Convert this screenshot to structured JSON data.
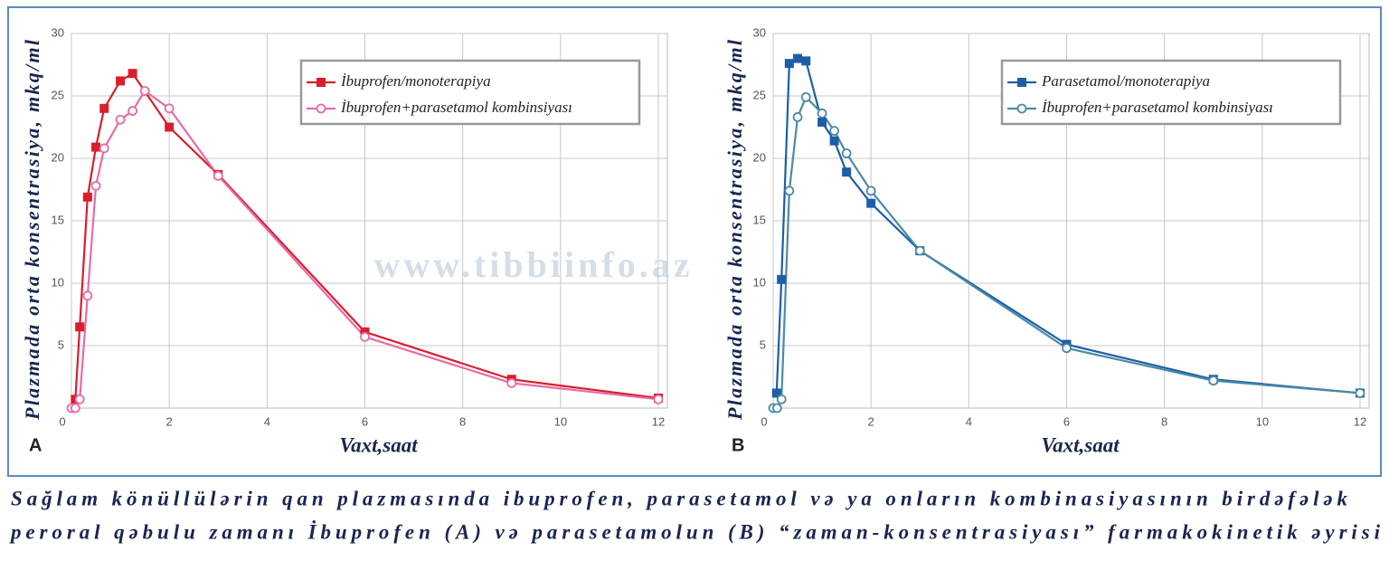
{
  "chart_data": [
    {
      "type": "line",
      "panel_label": "A",
      "xlabel": "Vaxt,saat",
      "ylabel": "Plazmada orta konsentrasiya, mkq/ml",
      "xlim": [
        0,
        12
      ],
      "xticks": [
        0,
        2,
        4,
        6,
        8,
        10,
        12
      ],
      "ylim": [
        0,
        30
      ],
      "yticks": [
        5,
        10,
        15,
        20,
        25,
        30
      ],
      "grid": true,
      "series": [
        {
          "name": "İbuprofen/monoterapiya",
          "color": "#d91f2c",
          "marker": "square",
          "x": [
            0.08,
            0.17,
            0.33,
            0.5,
            0.67,
            1,
            1.25,
            2,
            3,
            6,
            9,
            12
          ],
          "values": [
            0.7,
            6.5,
            16.9,
            20.9,
            24.0,
            26.2,
            26.8,
            22.5,
            18.7,
            6.1,
            2.3,
            0.8
          ]
        },
        {
          "name": "İbuprofen+parasetamol kombinsiyası",
          "color": "#e86ba8",
          "marker": "circle",
          "x": [
            0,
            0.08,
            0.17,
            0.33,
            0.5,
            0.67,
            1,
            1.25,
            1.5,
            2,
            3,
            6,
            9,
            12
          ],
          "values": [
            0,
            0,
            0.7,
            9.0,
            17.8,
            20.8,
            23.1,
            23.8,
            25.4,
            24.0,
            18.6,
            5.7,
            2.0,
            0.7
          ]
        }
      ]
    },
    {
      "type": "line",
      "panel_label": "B",
      "xlabel": "Vaxt,saat",
      "ylabel": "Plazmada orta konsentrasiya, mkq/ml",
      "xlim": [
        0,
        12
      ],
      "xticks": [
        0,
        2,
        4,
        6,
        8,
        10,
        12
      ],
      "ylim": [
        0,
        30
      ],
      "yticks": [
        5,
        10,
        15,
        20,
        25,
        30
      ],
      "grid": true,
      "series": [
        {
          "name": "Parasetamol/monoterapiya",
          "color": "#1d5ea8",
          "marker": "square",
          "x": [
            0.07,
            0.17,
            0.33,
            0.5,
            0.67,
            1,
            1.25,
            1.5,
            2,
            3,
            6,
            9,
            12
          ],
          "values": [
            1.2,
            10.3,
            27.6,
            28.0,
            27.8,
            22.9,
            21.4,
            18.9,
            16.4,
            12.6,
            5.1,
            2.3,
            1.2
          ]
        },
        {
          "name": "İbuprofen+parasetamol kombinsiyası",
          "color": "#4b8aa6",
          "marker": "circle",
          "x": [
            0,
            0.08,
            0.17,
            0.33,
            0.5,
            0.67,
            1,
            1.25,
            1.5,
            2,
            3,
            6,
            9,
            12
          ],
          "values": [
            0,
            0,
            0.7,
            17.4,
            23.3,
            24.9,
            23.6,
            22.2,
            20.4,
            17.4,
            12.6,
            4.8,
            2.2,
            1.2
          ]
        }
      ]
    }
  ],
  "watermark": "www.tibbiinfo.az",
  "caption": [
    "Sağlam könüllülərin qan plazmasında ibuprofen, parasetamol və ya onların kombinasiyasının birdəfələk",
    "peroral qəbulu zamanı İbuprofen (A) və parasetamolun (B) “zaman-konsentrasiyası” farmakokinetik əyrisi"
  ]
}
